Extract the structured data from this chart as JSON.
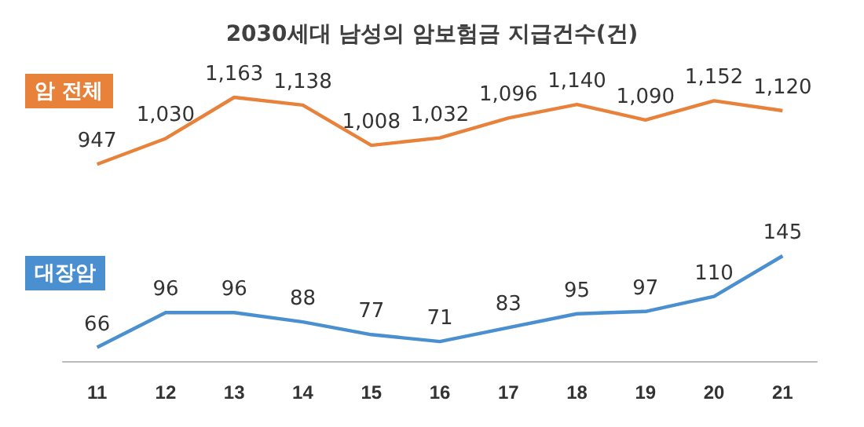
{
  "chart_data": [
    {
      "type": "line",
      "title": "2030세대 남성의 암보험금 지급건수(건)",
      "categories": [
        "11",
        "12",
        "13",
        "14",
        "15",
        "16",
        "17",
        "18",
        "19",
        "20",
        "21"
      ],
      "series": [
        {
          "name": "암 전체",
          "color": "#e8823a",
          "values": [
            947,
            1030,
            1163,
            1138,
            1008,
            1032,
            1096,
            1140,
            1090,
            1152,
            1120
          ],
          "value_labels": [
            "947",
            "1,030",
            "1,163",
            "1,138",
            "1,008",
            "1,032",
            "1,096",
            "1,140",
            "1,090",
            "1,152",
            "1,120"
          ]
        }
      ],
      "marker": "none",
      "tick_labels": false
    },
    {
      "type": "line",
      "categories": [
        "11",
        "12",
        "13",
        "14",
        "15",
        "16",
        "17",
        "18",
        "19",
        "20",
        "21"
      ],
      "series": [
        {
          "name": "대장암",
          "color": "#4a8fd0",
          "values": [
            66,
            96,
            96,
            88,
            77,
            71,
            83,
            95,
            97,
            110,
            145
          ]
        }
      ],
      "data_labels": true,
      "marker": "none",
      "tick_labels": "x"
    }
  ]
}
